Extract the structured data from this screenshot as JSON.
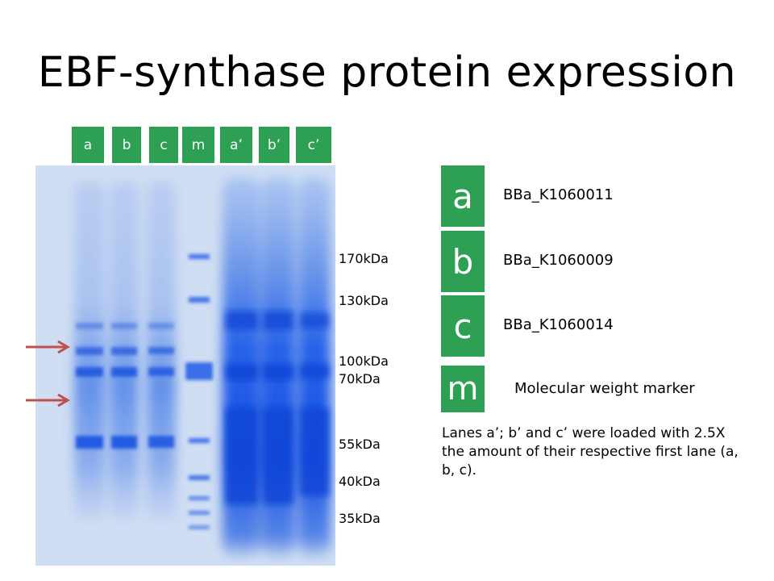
{
  "slide": {
    "title": "EBF-synthase protein expression"
  },
  "lanes": [
    {
      "label": "a"
    },
    {
      "label": "b"
    },
    {
      "label": "c"
    },
    {
      "label": "m"
    },
    {
      "label": "a’"
    },
    {
      "label": "b’"
    },
    {
      "label": "c’"
    }
  ],
  "markers": [
    {
      "label": "170kDa"
    },
    {
      "label": "130kDa"
    },
    {
      "label": "100kDa"
    },
    {
      "label": "70kDa"
    },
    {
      "label": "55kDa"
    },
    {
      "label": "40kDa"
    },
    {
      "label": "35kDa"
    }
  ],
  "legend": [
    {
      "key": "a",
      "text": "BBa_K1060011"
    },
    {
      "key": "b",
      "text": "BBa_K1060009"
    },
    {
      "key": "c",
      "text": "BBa_K1060014"
    },
    {
      "key": "m",
      "text": "Molecular weight marker"
    }
  ],
  "note": "Lanes a’; b’ and c’ were loaded with 2.5X the amount of their respective first lane (a, b, c).",
  "colors": {
    "accent_green": "#2ea053",
    "gel_background": "#d6e2f4",
    "gel_blue": "#1f57e0",
    "arrow": "#c0504d"
  }
}
